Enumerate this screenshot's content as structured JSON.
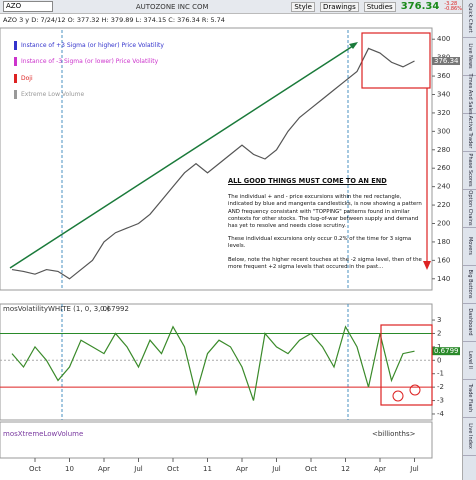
{
  "toolbar": {
    "symbol": "AZO",
    "company": "AUTOZONE INC COM",
    "buttons": [
      "Style",
      "Drawings",
      "Studies"
    ],
    "last": "376.34",
    "change": "-3.28",
    "change_pct": "-0.86%"
  },
  "quote_line": "AZO 3 y D: 7/24/12 O: 377.32 H: 379.89 L: 374.15 C: 376.34 R: 5.74",
  "side_tabs": [
    "Quick Chart",
    "Live News",
    "Times And Sales",
    "Active Trader",
    "Phase Scores",
    "Option Chains",
    "Movers",
    "Big Buttons",
    "Dashboard",
    "Level II",
    "Trade Flash",
    "Live Index"
  ],
  "annotation": {
    "title": "ALL GOOD THINGS MUST COME TO AN END",
    "paragraphs": [
      "The individual + and - price excursions within the red rectangle, indicated by blue and mangenta candlesticks, is now showing a pattern AND frequency consistant with \"TOPPING\" patterns found in similar contexts for other stocks. The tug-of-war between supply and demand has yet to resolve and needs close scrutiny.",
      "These individual excursions only occur 0.2% of the time for 3 sigma levels.",
      "Below, note the higher recent touches at the -2 sigma level, then of the more frequent +2 sigma levels that occured in the past..."
    ]
  },
  "lower_panel": {
    "title": "mosXtremeLowVolume",
    "units": "<billionths>"
  },
  "chart_data": [
    {
      "type": "line",
      "legend_items": [
        {
          "name": "Instance of +3 Sigma (or higher) Price Volatility",
          "color": "#3333cc"
        },
        {
          "name": "Instance of -3 Sigma (or lower) Price Volatility",
          "color": "#cc33cc"
        },
        {
          "name": "Doji",
          "color": "#dd2222"
        },
        {
          "name": "Extreme Low Volume",
          "color": "#999999"
        }
      ],
      "values": [
        150,
        148,
        145,
        150,
        148,
        140,
        150,
        160,
        180,
        190,
        195,
        200,
        210,
        225,
        240,
        255,
        265,
        255,
        265,
        275,
        285,
        275,
        270,
        280,
        300,
        315,
        325,
        335,
        345,
        355,
        365,
        390,
        385,
        375,
        370,
        376.34
      ],
      "color": "#555555",
      "last_value_label": "376.34",
      "ylim": [
        130,
        410
      ],
      "yticks": [
        140,
        160,
        180,
        200,
        220,
        240,
        260,
        280,
        300,
        320,
        340,
        360,
        380,
        400
      ]
    },
    {
      "type": "line",
      "title": "mosVolatilityWHITE (1, 0, 3, 0)",
      "value_readout": "0.67992",
      "categories": [
        null,
        null,
        "Oct",
        null,
        null,
        "10",
        null,
        null,
        "Apr",
        null,
        null,
        "Jul",
        null,
        null,
        "Oct",
        null,
        null,
        "11",
        null,
        null,
        "Apr",
        null,
        null,
        "Jul",
        null,
        null,
        "Oct",
        null,
        null,
        "12",
        null,
        null,
        "Apr",
        null,
        null,
        "Jul"
      ],
      "values": [
        0.5,
        -0.5,
        1,
        0,
        -1.5,
        -0.5,
        1.5,
        1,
        0.5,
        2,
        1,
        -0.5,
        1.5,
        0.5,
        2.5,
        1,
        -2.5,
        0.5,
        1.5,
        1,
        -0.5,
        -3,
        2,
        1,
        0.5,
        1.5,
        2,
        1,
        -0.5,
        2.5,
        1,
        -2,
        2,
        -1.5,
        0.5,
        0.67992
      ],
      "color": "#3a8a2a",
      "last_value_label": "0.6799",
      "ylim": [
        -4.3,
        3.6
      ],
      "yticks": [
        -4,
        -3,
        -2,
        -1,
        0,
        1,
        2,
        3
      ]
    }
  ]
}
